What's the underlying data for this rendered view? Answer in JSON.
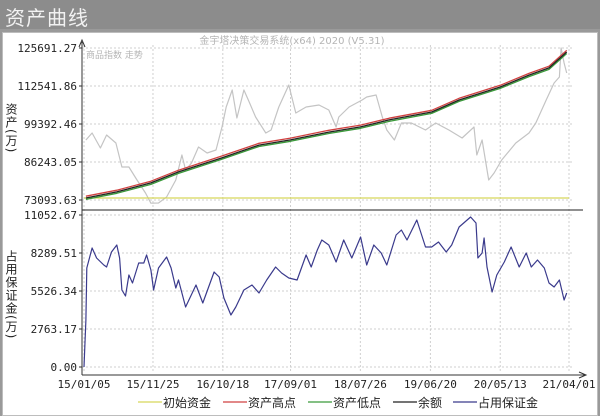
{
  "window": {
    "title": "资产曲线"
  },
  "chart_data": {
    "type": "line",
    "title": "金宇塔决策交易系统(x64) 2020 (V5.31)",
    "overlay_label": "商品指数 走势",
    "x_ticks": [
      "15/01/05",
      "15/11/25",
      "16/10/18",
      "17/09/01",
      "18/07/26",
      "19/06/20",
      "20/05/13",
      "21/04/01"
    ],
    "x_tick_dates": [
      "2015-01-05",
      "2015-11-25",
      "2016-10-18",
      "2017-09-01",
      "2018-07-26",
      "2019-06-20",
      "2020-05-13",
      "2021-04-01"
    ],
    "xlim": [
      "2015-01-05",
      "2021-04-01"
    ],
    "grid": true,
    "legend_position": "bottom",
    "panels": [
      {
        "id": "equity",
        "ylabel": "资产(万)",
        "ylim": [
          73093.63,
          125691.27
        ],
        "y_ticks": [
          "125691.27",
          "112541.86",
          "99392.46",
          "86243.05",
          "73093.63"
        ],
        "series": [
          {
            "name": "初始资金",
            "color": "#d8d85a",
            "dates": [
              "2015-01-05",
              "2021-04-01"
            ],
            "values": [
              73800,
              73800
            ]
          },
          {
            "name": "资产高点",
            "color": "#d04040",
            "dates": [
              "2015-01-14",
              "2015-06-08",
              "2015-11-15",
              "2016-03-24",
              "2016-10-10",
              "2017-04-06",
              "2017-09-01",
              "2018-02-28",
              "2018-07-27",
              "2018-12-08",
              "2019-06-26",
              "2019-11-02",
              "2020-05-13",
              "2020-09-25",
              "2020-12-28",
              "2021-03-21"
            ],
            "values": [
              74400,
              76500,
              79600,
              83400,
              88200,
              92700,
              94500,
              97200,
              99000,
              101400,
              104150,
              108300,
              112800,
              116900,
              119400,
              124900
            ]
          },
          {
            "name": "资产低点",
            "color": "#3a9a3a",
            "dates": [
              "2015-01-14",
              "2015-06-08",
              "2015-11-15",
              "2016-03-24",
              "2016-10-10",
              "2017-04-06",
              "2017-09-01",
              "2018-02-28",
              "2018-07-27",
              "2018-12-08",
              "2019-06-26",
              "2019-11-02",
              "2020-05-13",
              "2020-09-25",
              "2020-12-28",
              "2021-03-21"
            ],
            "values": [
              73300,
              75400,
              78500,
              82300,
              87100,
              91600,
              93400,
              96100,
              97900,
              100300,
              103050,
              107200,
              111700,
              115800,
              118300,
              123800
            ]
          },
          {
            "name": "余额",
            "color": "#222222",
            "dates": [
              "2015-01-14",
              "2015-06-08",
              "2015-11-15",
              "2016-03-24",
              "2016-10-10",
              "2017-04-06",
              "2017-09-01",
              "2018-02-28",
              "2018-07-27",
              "2018-12-08",
              "2019-06-26",
              "2019-11-02",
              "2020-05-13",
              "2020-09-25",
              "2020-12-28",
              "2021-03-21"
            ],
            "values": [
              73800,
              75900,
              79000,
              82800,
              87600,
              92100,
              93900,
              96600,
              98400,
              100800,
              103550,
              107700,
              112200,
              116300,
              118800,
              124300
            ]
          },
          {
            "name": "商品指数 走势",
            "color": "#c4c4c4",
            "dates": [
              "2015-01-14",
              "2015-02-12",
              "2015-03-23",
              "2015-04-21",
              "2015-06-04",
              "2015-07-02",
              "2015-08-04",
              "2015-09-11",
              "2015-10-21",
              "2015-11-15",
              "2015-12-21",
              "2016-01-28",
              "2016-03-11",
              "2016-04-09",
              "2016-04-26",
              "2016-05-24",
              "2016-06-26",
              "2016-08-05",
              "2016-09-16",
              "2016-10-14",
              "2016-11-03",
              "2016-12-01",
              "2016-12-23",
              "2017-01-25",
              "2017-02-19",
              "2017-03-21",
              "2017-05-08",
              "2017-06-02",
              "2017-07-08",
              "2017-08-24",
              "2017-09-26",
              "2017-11-13",
              "2018-01-13",
              "2018-02-28",
              "2018-04-03",
              "2018-04-16",
              "2018-06-03",
              "2018-08-03",
              "2018-08-25",
              "2018-10-08",
              "2018-11-06",
              "2018-11-27",
              "2019-01-02",
              "2019-02-04",
              "2019-03-23",
              "2019-05-28",
              "2019-07-15",
              "2019-09-15",
              "2019-11-16",
              "2020-01-11",
              "2020-01-24",
              "2020-02-18",
              "2020-03-20",
              "2020-04-14",
              "2020-05-20",
              "2020-07-25",
              "2020-09-25",
              "2020-10-27",
              "2020-12-15",
              "2021-01-21",
              "2021-02-15",
              "2021-02-23",
              "2021-03-09",
              "2021-03-21"
            ],
            "values": [
              93854,
              96276,
              91086,
              95584,
              92816,
              84512,
              84512,
              80014,
              75516,
              72000,
              72056,
              74132,
              80014,
              88664,
              83474,
              85896,
              91432,
              89356,
              90394,
              98352,
              105272,
              111154,
              101466,
              111154,
              107002,
              101812,
              96276,
              97316,
              105272,
              112884,
              103196,
              105272,
              105964,
              104234,
              98352,
              101812,
              105272,
              107694,
              108732,
              109424,
              101812,
              97316,
              93854,
              99736,
              99736,
              97316,
              99736,
              97316,
              94546,
              98352,
              88664,
              93854,
              80014,
              82436,
              86934,
              92816,
              96276,
              99736,
              107694,
              113576,
              115652,
              125686,
              120496,
              117036
            ]
          }
        ]
      },
      {
        "id": "margin",
        "ylabel": "占用保证金(万)",
        "ylim": [
          0,
          11052.67
        ],
        "y_ticks": [
          "11052.67",
          "8289.51",
          "5526.34",
          "2763.17",
          "0.00"
        ],
        "series": [
          {
            "name": "占用保证金",
            "color": "#3a3a8c",
            "dates": [
              "2015-01-05",
              "2015-01-14",
              "2015-01-18",
              "2015-02-12",
              "2015-03-05",
              "2015-04-08",
              "2015-04-21",
              "2015-05-14",
              "2015-06-08",
              "2015-06-21",
              "2015-07-02",
              "2015-07-19",
              "2015-08-04",
              "2015-08-21",
              "2015-09-19",
              "2015-10-13",
              "2015-10-26",
              "2015-11-15",
              "2015-11-28",
              "2015-12-21",
              "2016-01-28",
              "2016-02-18",
              "2016-03-11",
              "2016-03-24",
              "2016-04-26",
              "2016-06-14",
              "2016-07-16",
              "2016-09-07",
              "2016-10-01",
              "2016-10-23",
              "2016-11-25",
              "2016-12-18",
              "2017-01-25",
              "2017-03-04",
              "2017-04-06",
              "2017-05-12",
              "2017-06-23",
              "2017-07-21",
              "2017-08-24",
              "2017-10-02",
              "2017-11-13",
              "2017-12-07",
              "2018-01-05",
              "2018-01-26",
              "2018-02-28",
              "2018-04-03",
              "2018-05-09",
              "2018-06-16",
              "2018-07-27",
              "2018-08-25",
              "2018-09-27",
              "2018-11-01",
              "2018-11-27",
              "2019-01-10",
              "2019-02-04",
              "2019-03-02",
              "2019-04-17",
              "2019-05-28",
              "2019-06-26",
              "2019-07-28",
              "2019-09-02",
              "2019-09-28",
              "2019-11-02",
              "2019-12-26",
              "2020-01-20",
              "2020-01-29",
              "2020-02-18",
              "2020-02-27",
              "2020-03-12",
              "2020-04-05",
              "2020-04-27",
              "2020-06-01",
              "2020-07-03",
              "2020-08-10",
              "2020-09-12",
              "2020-10-06",
              "2020-11-04",
              "2020-12-06",
              "2020-12-28",
              "2021-01-21",
              "2021-02-15",
              "2021-03-09",
              "2021-03-21"
            ],
            "values": [
              0,
              3417,
              7198,
              8652,
              7925,
              7416,
              7270,
              8362,
              8871,
              7925,
              5599,
              5162,
              6689,
              6108,
              7562,
              7562,
              8144,
              7053,
              5599,
              7198,
              7998,
              7198,
              5744,
              6326,
              4362,
              5962,
              4653,
              6907,
              6544,
              5017,
              3781,
              4362,
              5599,
              5962,
              5381,
              6326,
              7271,
              6835,
              6471,
              6326,
              8144,
              7271,
              8507,
              9234,
              8871,
              7635,
              9234,
              7925,
              9452,
              7416,
              8871,
              8289,
              7416,
              9598,
              9961,
              9234,
              10688,
              8725,
              8725,
              9089,
              8362,
              8871,
              10179,
              10907,
              10470,
              7925,
              8289,
              9380,
              7271,
              5453,
              6689,
              7635,
              8725,
              7271,
              8289,
              7271,
              7780,
              7198,
              6108,
              5817,
              6326,
              4871,
              5381
            ]
          }
        ]
      }
    ],
    "legend": [
      "初始资金",
      "资产高点",
      "资产低点",
      "余额",
      "占用保证金"
    ],
    "legend_colors": [
      "#d8d85a",
      "#d04040",
      "#3a9a3a",
      "#222222",
      "#3a3a8c"
    ]
  }
}
